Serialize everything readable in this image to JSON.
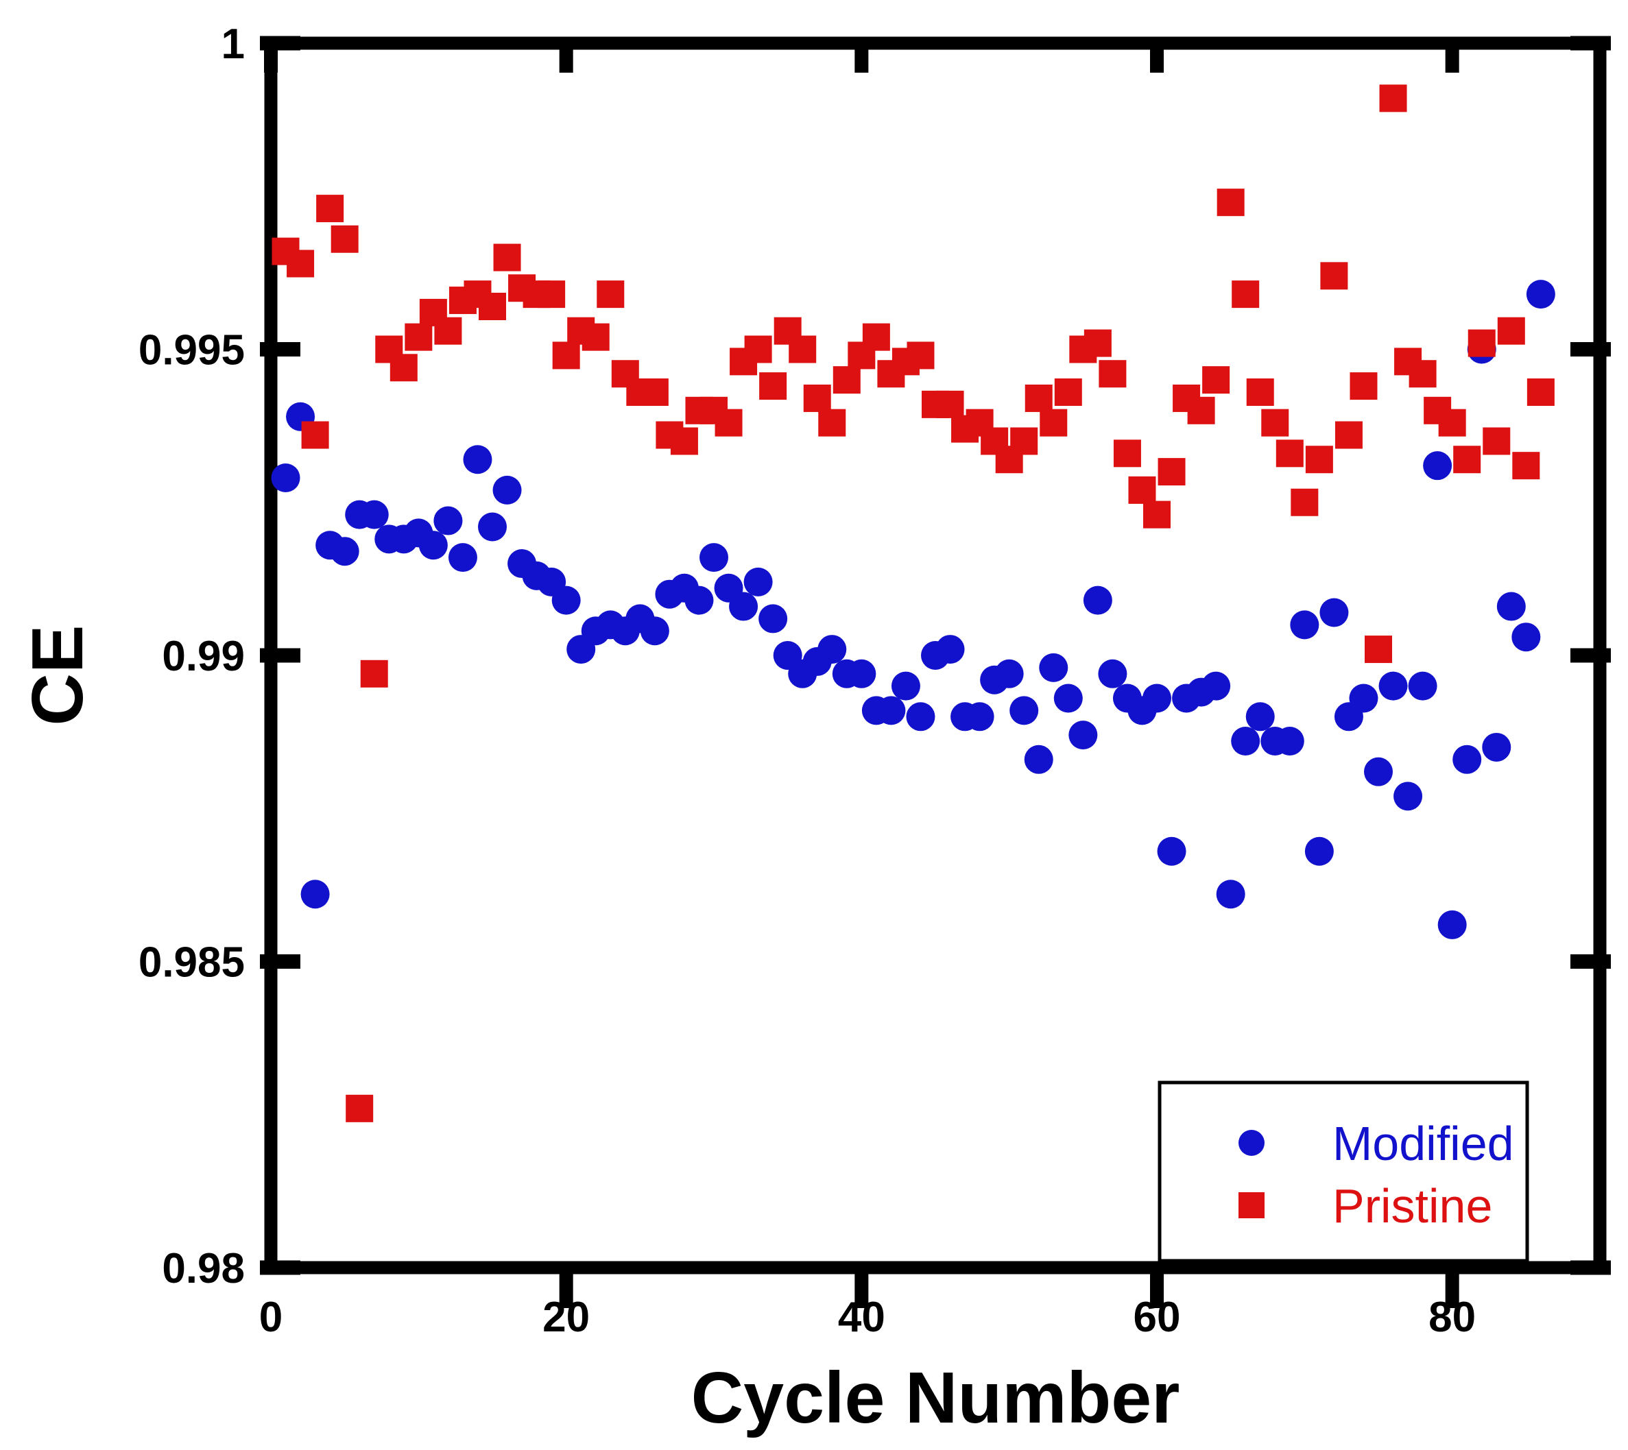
{
  "figure": {
    "background": "#ffffff",
    "axis_color": "#000000"
  },
  "chart_data": {
    "type": "scatter",
    "title": "",
    "xlabel": "Cycle Number",
    "ylabel": "CE",
    "xlim": [
      0,
      90
    ],
    "ylim": [
      0.98,
      1.0
    ],
    "grid": false,
    "x_ticks": {
      "values": [
        0,
        20,
        40,
        60,
        80
      ],
      "labels": [
        "0",
        "20",
        "40",
        "60",
        "80"
      ]
    },
    "y_ticks": {
      "values": [
        1.0,
        0.995,
        0.99,
        0.985,
        0.98
      ],
      "labels": [
        "1",
        "0.995",
        "0.99",
        "0.985",
        "0.98"
      ]
    },
    "legend": {
      "position": "lower-right",
      "border_color": "#000000"
    },
    "series": [
      {
        "name": "Modified",
        "marker": "circle",
        "color": "#1212cd",
        "points": [
          [
            1,
            0.9929
          ],
          [
            2,
            0.9939
          ],
          [
            3,
            0.9861
          ],
          [
            4,
            0.9918
          ],
          [
            5,
            0.9917
          ],
          [
            6,
            0.9923
          ],
          [
            7,
            0.9923
          ],
          [
            8,
            0.9919
          ],
          [
            9,
            0.9919
          ],
          [
            10,
            0.992
          ],
          [
            11,
            0.9918
          ],
          [
            12,
            0.9922
          ],
          [
            13,
            0.9916
          ],
          [
            14,
            0.9932
          ],
          [
            15,
            0.9921
          ],
          [
            16,
            0.9927
          ],
          [
            17,
            0.9915
          ],
          [
            18,
            0.9913
          ],
          [
            19,
            0.9912
          ],
          [
            20,
            0.9909
          ],
          [
            21,
            0.9901
          ],
          [
            22,
            0.9904
          ],
          [
            23,
            0.9905
          ],
          [
            24,
            0.9904
          ],
          [
            25,
            0.9906
          ],
          [
            26,
            0.9904
          ],
          [
            27,
            0.991
          ],
          [
            28,
            0.9911
          ],
          [
            29,
            0.9909
          ],
          [
            30,
            0.9916
          ],
          [
            31,
            0.9911
          ],
          [
            32,
            0.9908
          ],
          [
            33,
            0.9912
          ],
          [
            34,
            0.9906
          ],
          [
            35,
            0.99
          ],
          [
            36,
            0.9897
          ],
          [
            37,
            0.9899
          ],
          [
            38,
            0.9901
          ],
          [
            39,
            0.9897
          ],
          [
            40,
            0.9897
          ],
          [
            41,
            0.9891
          ],
          [
            42,
            0.9891
          ],
          [
            43,
            0.9895
          ],
          [
            44,
            0.989
          ],
          [
            45,
            0.99
          ],
          [
            46,
            0.9901
          ],
          [
            47,
            0.989
          ],
          [
            48,
            0.989
          ],
          [
            49,
            0.9896
          ],
          [
            50,
            0.9897
          ],
          [
            51,
            0.9891
          ],
          [
            52,
            0.9883
          ],
          [
            53,
            0.9898
          ],
          [
            54,
            0.9893
          ],
          [
            55,
            0.9887
          ],
          [
            56,
            0.9909
          ],
          [
            57,
            0.9897
          ],
          [
            58,
            0.9893
          ],
          [
            59,
            0.9891
          ],
          [
            60,
            0.9893
          ],
          [
            61,
            0.9868
          ],
          [
            62,
            0.9893
          ],
          [
            63,
            0.9894
          ],
          [
            64,
            0.9895
          ],
          [
            65,
            0.9861
          ],
          [
            66,
            0.9886
          ],
          [
            67,
            0.989
          ],
          [
            68,
            0.9886
          ],
          [
            69,
            0.9886
          ],
          [
            70,
            0.9905
          ],
          [
            71,
            0.9868
          ],
          [
            72,
            0.9907
          ],
          [
            73,
            0.989
          ],
          [
            74,
            0.9893
          ],
          [
            75,
            0.9881
          ],
          [
            76,
            0.9895
          ],
          [
            77,
            0.9877
          ],
          [
            78,
            0.9895
          ],
          [
            79,
            0.9931
          ],
          [
            80,
            0.9856
          ],
          [
            81,
            0.9883
          ],
          [
            82,
            0.995
          ],
          [
            83,
            0.9885
          ],
          [
            84,
            0.9908
          ],
          [
            85,
            0.9903
          ],
          [
            86,
            0.9959
          ]
        ]
      },
      {
        "name": "Pristine",
        "marker": "square",
        "color": "#dd1111",
        "points": [
          [
            1,
            0.9966
          ],
          [
            2,
            0.9964
          ],
          [
            3,
            0.9936
          ],
          [
            4,
            0.9973
          ],
          [
            5,
            0.9968
          ],
          [
            6,
            0.9826
          ],
          [
            7,
            0.9897
          ],
          [
            8,
            0.995
          ],
          [
            9,
            0.9947
          ],
          [
            10,
            0.9952
          ],
          [
            11,
            0.9956
          ],
          [
            12,
            0.9953
          ],
          [
            13,
            0.9958
          ],
          [
            14,
            0.9959
          ],
          [
            15,
            0.9957
          ],
          [
            16,
            0.9965
          ],
          [
            17,
            0.996
          ],
          [
            18,
            0.9959
          ],
          [
            19,
            0.9959
          ],
          [
            20,
            0.9949
          ],
          [
            21,
            0.9953
          ],
          [
            22,
            0.9952
          ],
          [
            23,
            0.9959
          ],
          [
            24,
            0.9946
          ],
          [
            25,
            0.9943
          ],
          [
            26,
            0.9943
          ],
          [
            27,
            0.9936
          ],
          [
            28,
            0.9935
          ],
          [
            29,
            0.994
          ],
          [
            30,
            0.994
          ],
          [
            31,
            0.9938
          ],
          [
            32,
            0.9948
          ],
          [
            33,
            0.995
          ],
          [
            34,
            0.9944
          ],
          [
            35,
            0.9953
          ],
          [
            36,
            0.995
          ],
          [
            37,
            0.9942
          ],
          [
            38,
            0.9938
          ],
          [
            39,
            0.9945
          ],
          [
            40,
            0.9949
          ],
          [
            41,
            0.9952
          ],
          [
            42,
            0.9946
          ],
          [
            43,
            0.9948
          ],
          [
            44,
            0.9949
          ],
          [
            45,
            0.9941
          ],
          [
            46,
            0.9941
          ],
          [
            47,
            0.9937
          ],
          [
            48,
            0.9938
          ],
          [
            49,
            0.9935
          ],
          [
            50,
            0.9932
          ],
          [
            51,
            0.9935
          ],
          [
            52,
            0.9942
          ],
          [
            53,
            0.9938
          ],
          [
            54,
            0.9943
          ],
          [
            55,
            0.995
          ],
          [
            56,
            0.9951
          ],
          [
            57,
            0.9946
          ],
          [
            58,
            0.9933
          ],
          [
            59,
            0.9927
          ],
          [
            60,
            0.9923
          ],
          [
            61,
            0.993
          ],
          [
            62,
            0.9942
          ],
          [
            63,
            0.994
          ],
          [
            64,
            0.9945
          ],
          [
            65,
            0.9974
          ],
          [
            66,
            0.9959
          ],
          [
            67,
            0.9943
          ],
          [
            68,
            0.9938
          ],
          [
            69,
            0.9933
          ],
          [
            70,
            0.9925
          ],
          [
            71,
            0.9932
          ],
          [
            72,
            0.9962
          ],
          [
            73,
            0.9936
          ],
          [
            74,
            0.9944
          ],
          [
            75,
            0.9901
          ],
          [
            76,
            0.9991
          ],
          [
            77,
            0.9948
          ],
          [
            78,
            0.9946
          ],
          [
            79,
            0.994
          ],
          [
            80,
            0.9938
          ],
          [
            81,
            0.9932
          ],
          [
            82,
            0.9951
          ],
          [
            83,
            0.9935
          ],
          [
            84,
            0.9953
          ],
          [
            85,
            0.9931
          ],
          [
            86,
            0.9943
          ]
        ]
      }
    ]
  }
}
